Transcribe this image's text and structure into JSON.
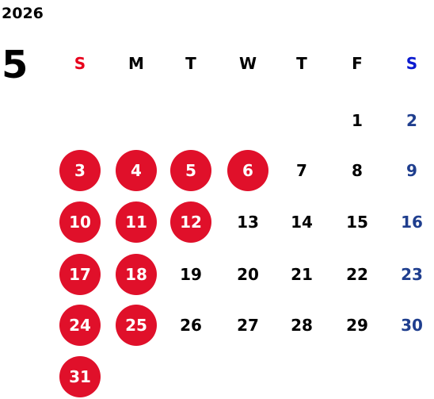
{
  "year": "2026",
  "month": "5",
  "weekdays": [
    "S",
    "M",
    "T",
    "W",
    "T",
    "F",
    "S"
  ],
  "weeks": [
    [
      null,
      null,
      null,
      null,
      null,
      {
        "day": "1",
        "holiday": false
      },
      {
        "day": "2",
        "holiday": false
      }
    ],
    [
      {
        "day": "3",
        "holiday": true
      },
      {
        "day": "4",
        "holiday": true
      },
      {
        "day": "5",
        "holiday": true
      },
      {
        "day": "6",
        "holiday": true
      },
      {
        "day": "7",
        "holiday": false
      },
      {
        "day": "8",
        "holiday": false
      },
      {
        "day": "9",
        "holiday": false
      }
    ],
    [
      {
        "day": "10",
        "holiday": true
      },
      {
        "day": "11",
        "holiday": true
      },
      {
        "day": "12",
        "holiday": true
      },
      {
        "day": "13",
        "holiday": false
      },
      {
        "day": "14",
        "holiday": false
      },
      {
        "day": "15",
        "holiday": false
      },
      {
        "day": "16",
        "holiday": false
      }
    ],
    [
      {
        "day": "17",
        "holiday": true
      },
      {
        "day": "18",
        "holiday": true
      },
      {
        "day": "19",
        "holiday": false
      },
      {
        "day": "20",
        "holiday": false
      },
      {
        "day": "21",
        "holiday": false
      },
      {
        "day": "22",
        "holiday": false
      },
      {
        "day": "23",
        "holiday": false
      }
    ],
    [
      {
        "day": "24",
        "holiday": true
      },
      {
        "day": "25",
        "holiday": true
      },
      {
        "day": "26",
        "holiday": false
      },
      {
        "day": "27",
        "holiday": false
      },
      {
        "day": "28",
        "holiday": false
      },
      {
        "day": "29",
        "holiday": false
      },
      {
        "day": "30",
        "holiday": false
      }
    ],
    [
      {
        "day": "31",
        "holiday": true
      },
      null,
      null,
      null,
      null,
      null,
      null
    ]
  ]
}
